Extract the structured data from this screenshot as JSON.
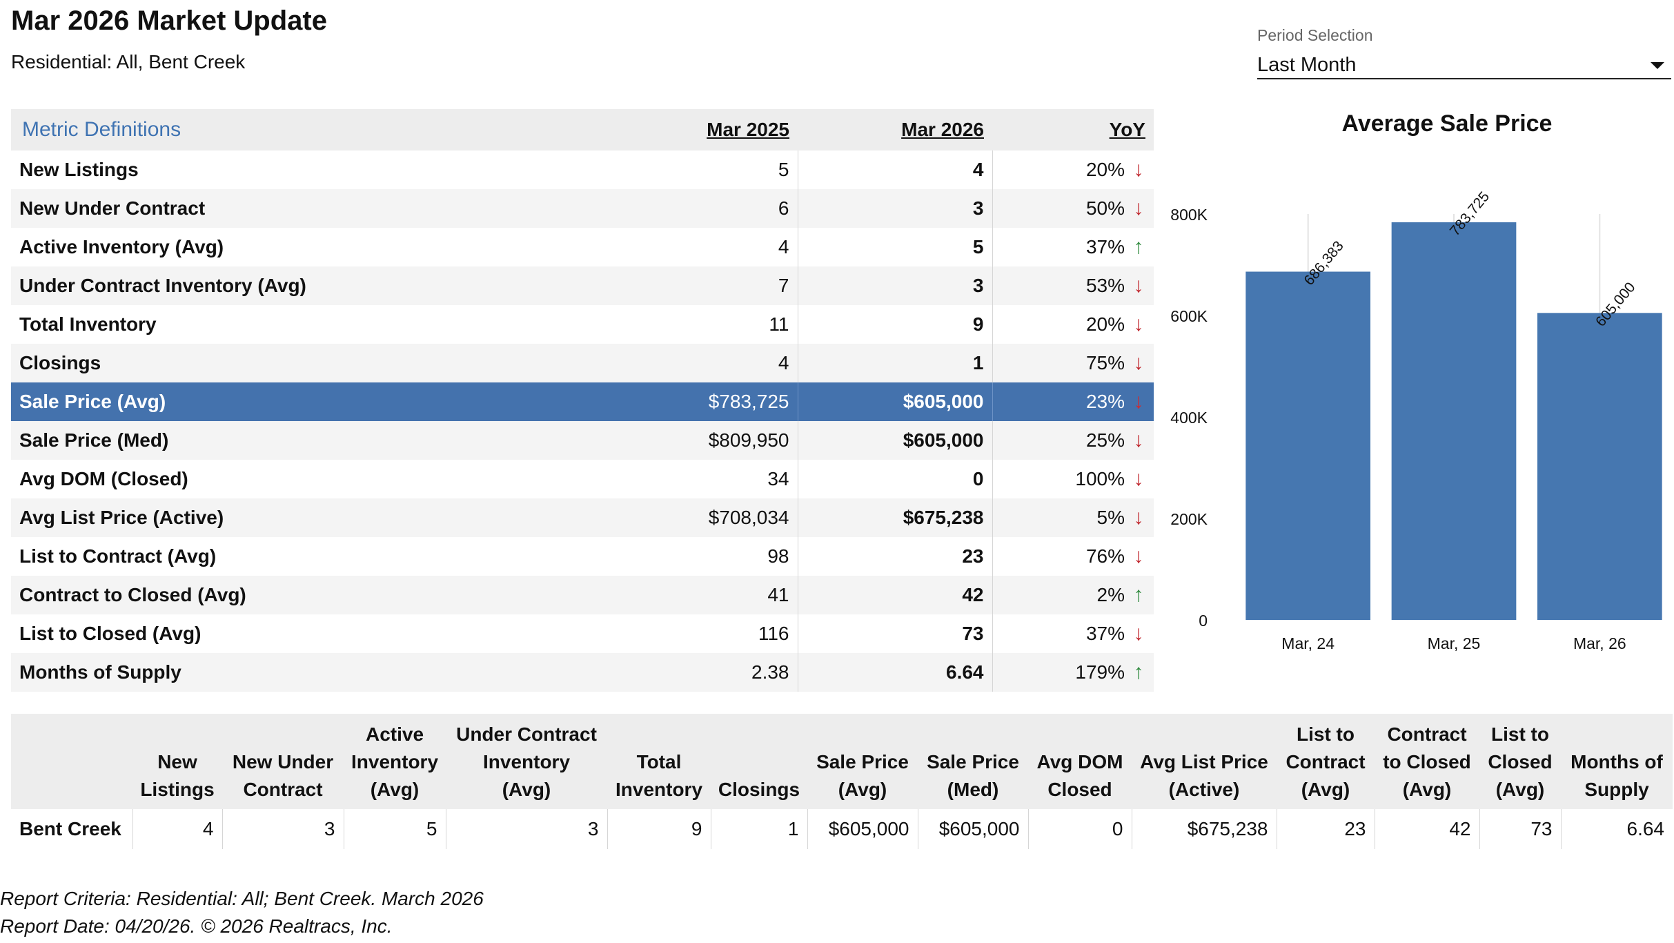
{
  "header": {
    "title": "Mar 2026 Market Update",
    "subtitle": "Residential: All, Bent Creek"
  },
  "period": {
    "label": "Period Selection",
    "value": "Last Month"
  },
  "metrics_table": {
    "definitions_link": "Metric Definitions",
    "col_prev": "Mar 2025",
    "col_curr": "Mar 2026",
    "col_yoy": "YoY",
    "selected_index": 6,
    "rows": [
      {
        "label": "New Listings",
        "prev": "5",
        "curr": "4",
        "yoy": "20%",
        "dir": "down"
      },
      {
        "label": "New Under Contract",
        "prev": "6",
        "curr": "3",
        "yoy": "50%",
        "dir": "down"
      },
      {
        "label": "Active Inventory (Avg)",
        "prev": "4",
        "curr": "5",
        "yoy": "37%",
        "dir": "up"
      },
      {
        "label": "Under Contract Inventory (Avg)",
        "prev": "7",
        "curr": "3",
        "yoy": "53%",
        "dir": "down"
      },
      {
        "label": "Total Inventory",
        "prev": "11",
        "curr": "9",
        "yoy": "20%",
        "dir": "down"
      },
      {
        "label": "Closings",
        "prev": "4",
        "curr": "1",
        "yoy": "75%",
        "dir": "down"
      },
      {
        "label": "Sale Price (Avg)",
        "prev": "$783,725",
        "curr": "$605,000",
        "yoy": "23%",
        "dir": "down"
      },
      {
        "label": "Sale Price (Med)",
        "prev": "$809,950",
        "curr": "$605,000",
        "yoy": "25%",
        "dir": "down"
      },
      {
        "label": "Avg DOM (Closed)",
        "prev": "34",
        "curr": "0",
        "yoy": "100%",
        "dir": "down"
      },
      {
        "label": "Avg List Price (Active)",
        "prev": "$708,034",
        "curr": "$675,238",
        "yoy": "5%",
        "dir": "down"
      },
      {
        "label": "List to Contract (Avg)",
        "prev": "98",
        "curr": "23",
        "yoy": "76%",
        "dir": "down"
      },
      {
        "label": "Contract to Closed (Avg)",
        "prev": "41",
        "curr": "42",
        "yoy": "2%",
        "dir": "up"
      },
      {
        "label": "List to Closed (Avg)",
        "prev": "116",
        "curr": "73",
        "yoy": "37%",
        "dir": "down"
      },
      {
        "label": "Months of Supply",
        "prev": "2.38",
        "curr": "6.64",
        "yoy": "179%",
        "dir": "up"
      }
    ]
  },
  "chart_data": {
    "type": "bar",
    "title": "Average Sale Price",
    "categories": [
      "Mar, 24",
      "Mar, 25",
      "Mar, 26"
    ],
    "values": [
      686383,
      783725,
      605000
    ],
    "data_labels": [
      "686,383",
      "783,725",
      "605,000"
    ],
    "ylim": [
      0,
      800000
    ],
    "yticks": [
      0,
      200000,
      400000,
      600000,
      800000
    ],
    "ytick_labels": [
      "0",
      "200K",
      "400K",
      "600K",
      "800K"
    ],
    "grid": "vertical",
    "bar_color": "#4677b0"
  },
  "summary_table": {
    "headers": [
      "",
      "New\nListings",
      "New Under\nContract",
      "Active\nInventory\n(Avg)",
      "Under Contract\nInventory\n(Avg)",
      "Total\nInventory",
      "Closings",
      "Sale Price\n(Avg)",
      "Sale Price\n(Med)",
      "Avg DOM\nClosed",
      "Avg List Price\n(Active)",
      "List to\nContract\n(Avg)",
      "Contract\nto Closed\n(Avg)",
      "List to\nClosed\n(Avg)",
      "Months of\nSupply"
    ],
    "rows": [
      [
        "Bent Creek",
        "4",
        "3",
        "5",
        "3",
        "9",
        "1",
        "$605,000",
        "$605,000",
        "0",
        "$675,238",
        "23",
        "42",
        "73",
        "6.64"
      ]
    ]
  },
  "footer": {
    "criteria": "Report Criteria: Residential: All; Bent Creek. March 2026",
    "report_date": "Report Date: 04/20/26. © 2026 Realtracs, Inc."
  },
  "arrows": {
    "up": "↑",
    "down": "↓"
  }
}
